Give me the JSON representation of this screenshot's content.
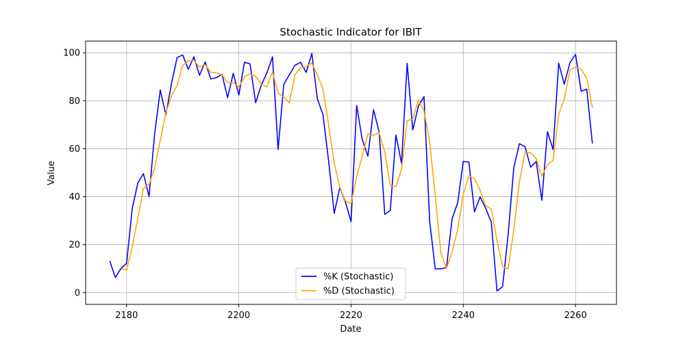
{
  "chart_data": {
    "type": "line",
    "title": "Stochastic Indicator for IBIT",
    "xlabel": "Date",
    "ylabel": "Value",
    "xlim": [
      2172.7,
      2267.3
    ],
    "ylim": [
      -4.9,
      104.9
    ],
    "x_ticks": [
      2180,
      2200,
      2220,
      2240,
      2260
    ],
    "y_ticks": [
      0,
      20,
      40,
      60,
      80,
      100
    ],
    "grid": true,
    "legend_position": "bottom-center",
    "x": [
      2177,
      2178,
      2179,
      2180,
      2181,
      2182,
      2183,
      2184,
      2185,
      2186,
      2187,
      2188,
      2189,
      2190,
      2191,
      2192,
      2193,
      2194,
      2195,
      2196,
      2197,
      2198,
      2199,
      2200,
      2201,
      2202,
      2203,
      2204,
      2205,
      2206,
      2207,
      2208,
      2209,
      2210,
      2211,
      2212,
      2213,
      2214,
      2215,
      2216,
      2217,
      2218,
      2219,
      2220,
      2221,
      2222,
      2223,
      2224,
      2225,
      2226,
      2227,
      2228,
      2229,
      2230,
      2231,
      2232,
      2233,
      2234,
      2235,
      2236,
      2237,
      2238,
      2239,
      2240,
      2241,
      2242,
      2243,
      2244,
      2245,
      2246,
      2247,
      2248,
      2249,
      2250,
      2251,
      2252,
      2253,
      2254,
      2255,
      2256,
      2257,
      2258,
      2259,
      2260,
      2261,
      2262,
      2263
    ],
    "series": [
      {
        "name": "%K (Stochastic)",
        "color": "#0000ff",
        "values": [
          13.2,
          6.3,
          10.1,
          12.2,
          35.0,
          45.7,
          49.6,
          40.1,
          66.3,
          84.5,
          74.1,
          87.1,
          98.0,
          99.1,
          93.1,
          98.3,
          90.6,
          96.2,
          89.1,
          89.6,
          91.0,
          81.3,
          91.4,
          82.4,
          96.0,
          95.4,
          79.2,
          86.5,
          91.6,
          98.3,
          59.7,
          86.8,
          90.8,
          94.8,
          96.0,
          91.8,
          99.7,
          80.8,
          74.2,
          55.0,
          33.0,
          43.8,
          37.7,
          29.6,
          78.0,
          63.7,
          56.9,
          76.3,
          67.0,
          32.6,
          34.3,
          65.7,
          53.9,
          95.6,
          67.8,
          77.8,
          81.7,
          29.9,
          9.9,
          9.9,
          10.5,
          30.8,
          37.5,
          54.7,
          54.4,
          33.7,
          39.9,
          35.1,
          29.3,
          0.7,
          2.5,
          24.5,
          52.2,
          62.1,
          60.8,
          52.3,
          54.7,
          38.5,
          67.1,
          59.6,
          95.7,
          86.9,
          95.9,
          99.3,
          84.0,
          84.8,
          62.2
        ]
      },
      {
        "name": "%D (Stochastic)",
        "color": "#ffa500",
        "values": [
          null,
          null,
          9.9,
          9.5,
          19.1,
          31.0,
          43.4,
          45.1,
          52.0,
          63.6,
          75.0,
          81.9,
          86.4,
          94.7,
          96.7,
          96.8,
          94.0,
          95.0,
          91.9,
          91.6,
          90.8,
          87.6,
          87.6,
          85.7,
          90.0,
          91.3,
          90.2,
          87.0,
          85.8,
          92.1,
          83.2,
          81.6,
          79.1,
          90.8,
          93.9,
          94.2,
          95.8,
          90.8,
          85.0,
          70.0,
          54.1,
          43.9,
          38.2,
          37.0,
          48.4,
          57.0,
          66.2,
          65.6,
          66.7,
          58.6,
          44.6,
          44.2,
          51.3,
          71.7,
          72.4,
          80.4,
          75.8,
          63.1,
          40.5,
          16.5,
          10.1,
          17.1,
          26.3,
          41.0,
          48.8,
          47.6,
          42.7,
          36.2,
          34.8,
          21.7,
          10.8,
          9.9,
          26.4,
          46.3,
          58.4,
          58.3,
          55.9,
          48.5,
          53.4,
          55.1,
          74.1,
          80.7,
          92.8,
          94.0,
          93.1,
          89.4,
          77.0
        ]
      }
    ]
  }
}
